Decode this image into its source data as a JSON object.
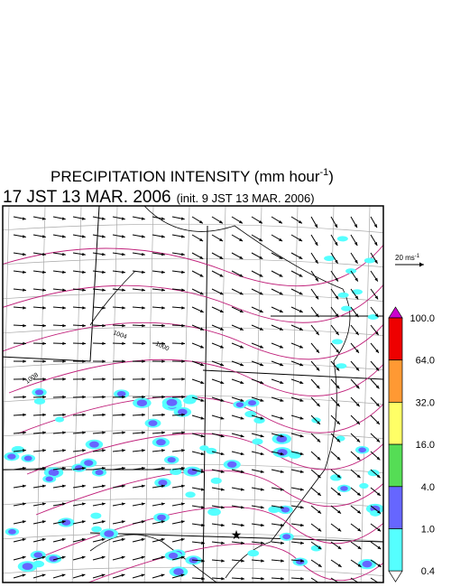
{
  "title": {
    "text": "PRECIPITATION INTENSITY (mm hour",
    "superscript": "-1",
    "close": ")"
  },
  "subtitle": {
    "time": "17 JST 13 MAR. 2006",
    "init": "(init. 9 JST 13 MAR. 2006)"
  },
  "wind_scale": {
    "text": "20 ms",
    "superscript": "-1"
  },
  "isobar_labels": [
    "1004",
    "1000",
    "1008"
  ],
  "colorbar": {
    "labels": [
      "100.0",
      "64.0",
      "32.0",
      "16.0",
      "4.0",
      "1.0",
      "0.4"
    ],
    "colors": [
      "#cc00cc",
      "#ee0000",
      "#ff9933",
      "#ffff66",
      "#55dd55",
      "#6666ff",
      "#55ffff",
      "#ffffff"
    ]
  }
}
